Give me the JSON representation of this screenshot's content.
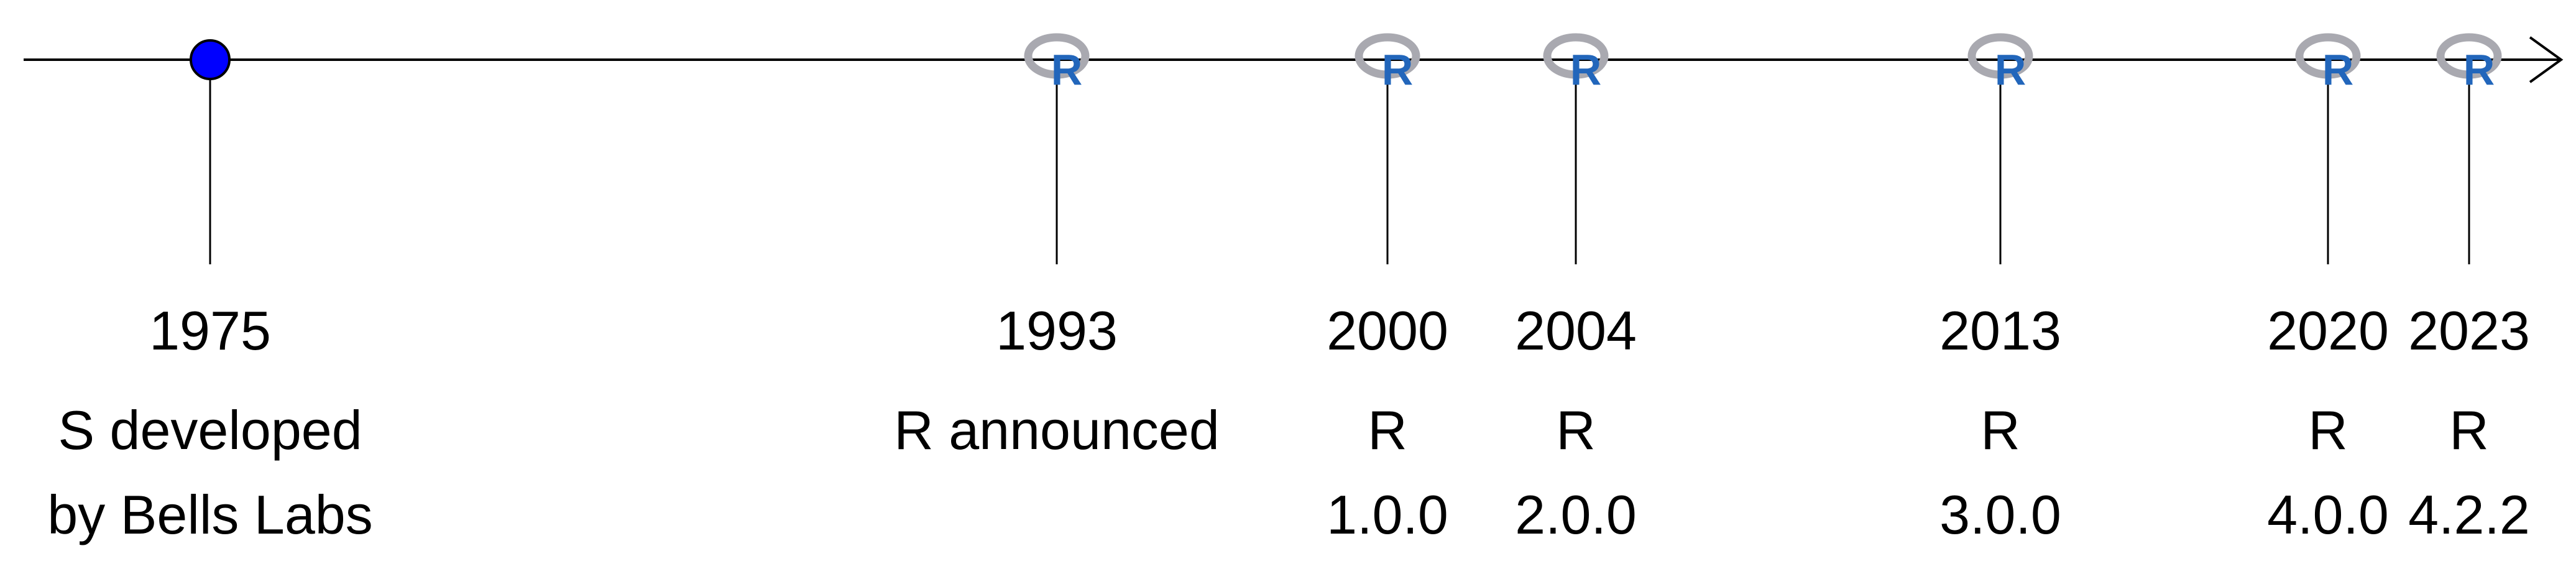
{
  "colors": {
    "axis": "#000000",
    "start_marker": "#0000ff",
    "r_logo_ring": "#a9a9b0",
    "r_logo_letter": "#2266bb"
  },
  "icons": {
    "start_marker": "blue-circle-marker",
    "release_marker": "r-logo-icon"
  },
  "timeline": {
    "events": [
      {
        "year": "1975",
        "line1": "S developed",
        "line2": "by Bells Labs",
        "marker": "circle"
      },
      {
        "year": "1993",
        "line1": "R announced",
        "line2": "",
        "marker": "r-logo"
      },
      {
        "year": "2000",
        "line1": "R",
        "line2": "1.0.0",
        "marker": "r-logo"
      },
      {
        "year": "2004",
        "line1": "R",
        "line2": "2.0.0",
        "marker": "r-logo"
      },
      {
        "year": "2013",
        "line1": "R",
        "line2": "3.0.0",
        "marker": "r-logo"
      },
      {
        "year": "2020",
        "line1": "R",
        "line2": "4.0.0",
        "marker": "r-logo"
      },
      {
        "year": "2023",
        "line1": "R",
        "line2": "4.2.2",
        "marker": "r-logo"
      }
    ]
  }
}
